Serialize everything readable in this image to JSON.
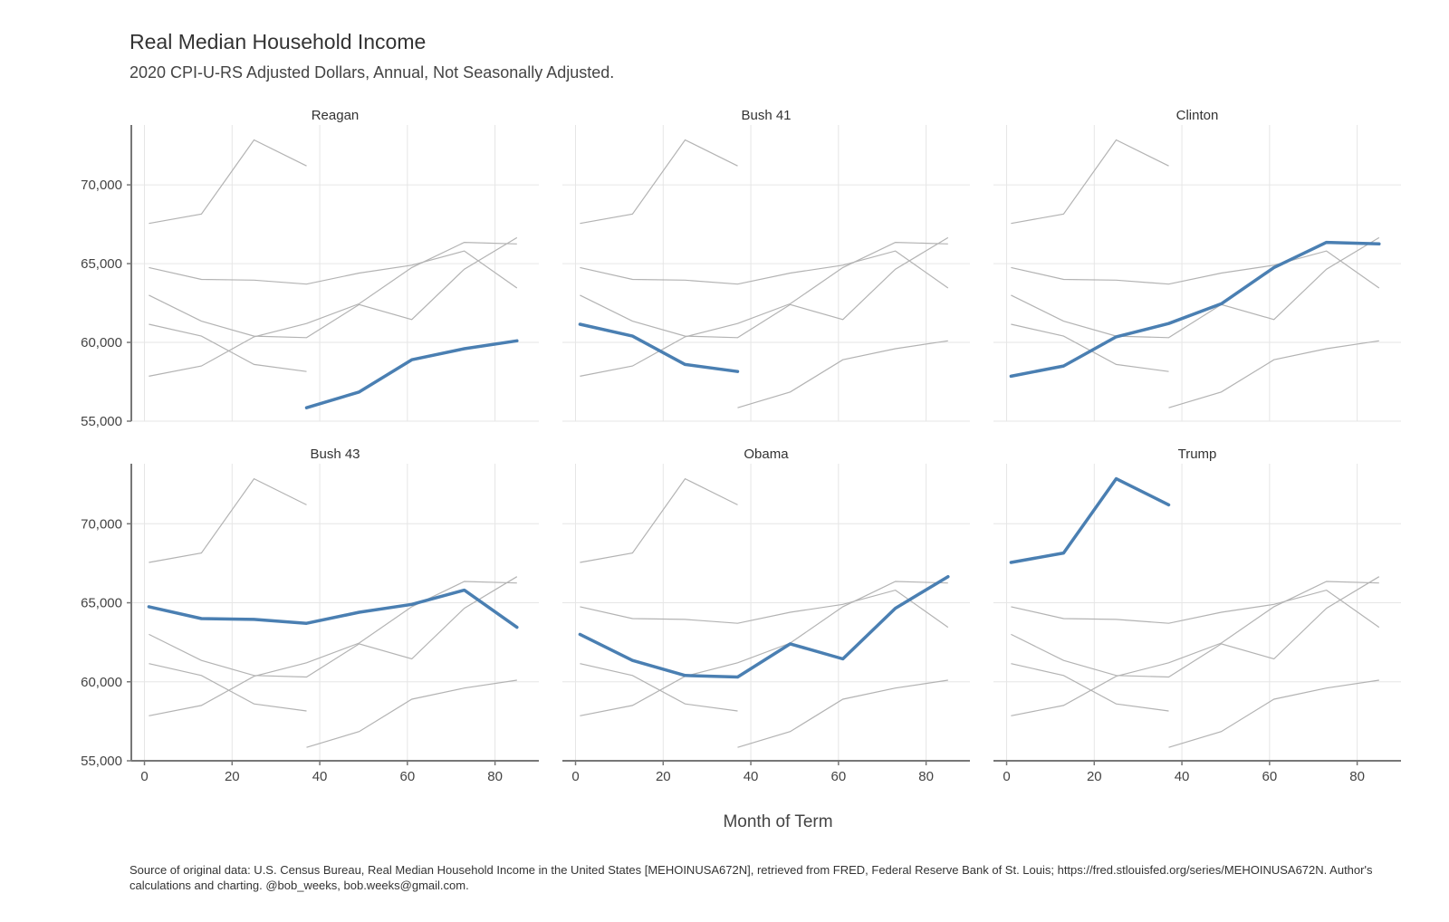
{
  "header": {
    "title": "Real Median Household Income",
    "subtitle": "2020 CPI-U-RS Adjusted Dollars, Annual, Not Seasonally Adjusted."
  },
  "footer": {
    "source": "Source of original data: U.S. Census Bureau, Real Median Household Income in the United States [MEHOINUSA672N], retrieved from FRED, Federal Reserve Bank of St. Louis; https://fred.stlouisfed.org/series/MEHOINUSA672N. Author's calculations and charting. @bob_weeks, bob.weeks@gmail.com."
  },
  "colors": {
    "highlight": "#4a7fb2",
    "background_series": "#b3b3b3",
    "grid": "#e6e6e6",
    "axis": "#777777"
  },
  "chart_data": {
    "type": "line",
    "layout": "small-multiples 3x2",
    "xlabel": "Month of Term",
    "ylabel": "",
    "xlim": [
      -3,
      90
    ],
    "ylim": [
      55000,
      73800
    ],
    "xticks": [
      0,
      20,
      40,
      60,
      80
    ],
    "xtick_labels": [
      "0",
      "20",
      "40",
      "60",
      "80"
    ],
    "yticks": [
      55000,
      60000,
      65000,
      70000
    ],
    "ytick_labels": [
      "55,000",
      "60,000",
      "65,000",
      "70,000"
    ],
    "grid": true,
    "panels": [
      "Reagan",
      "Bush 41",
      "Clinton",
      "Bush 43",
      "Obama",
      "Trump"
    ],
    "series": [
      {
        "name": "Reagan",
        "x": [
          37,
          49,
          61,
          73,
          85
        ],
        "values": [
          55850,
          56850,
          58900,
          59600,
          60100
        ]
      },
      {
        "name": "Bush 41",
        "x": [
          1,
          13,
          25,
          37
        ],
        "values": [
          61150,
          60400,
          58600,
          58150
        ]
      },
      {
        "name": "Clinton",
        "x": [
          1,
          13,
          25,
          37,
          49,
          61,
          73,
          85
        ],
        "values": [
          57850,
          58500,
          60350,
          61200,
          62450,
          64750,
          66350,
          66250
        ]
      },
      {
        "name": "Bush 43",
        "x": [
          1,
          13,
          25,
          37,
          49,
          61,
          73,
          85
        ],
        "values": [
          64750,
          64000,
          63950,
          63700,
          64400,
          64900,
          65800,
          63450
        ]
      },
      {
        "name": "Obama",
        "x": [
          1,
          13,
          25,
          37,
          49,
          61,
          73,
          85
        ],
        "values": [
          63000,
          61350,
          60400,
          60300,
          62400,
          61450,
          64650,
          66650
        ]
      },
      {
        "name": "Trump",
        "x": [
          1,
          13,
          25,
          37
        ],
        "values": [
          67550,
          68150,
          72850,
          71200
        ]
      }
    ]
  }
}
